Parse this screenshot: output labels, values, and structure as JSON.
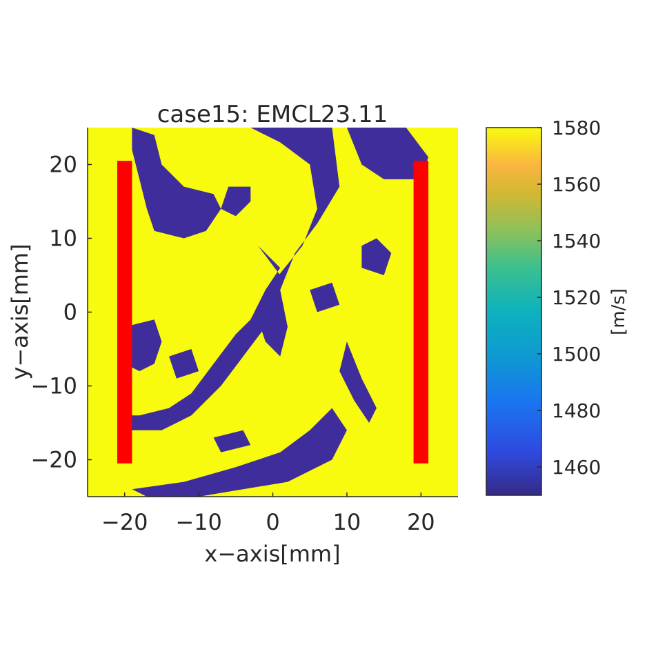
{
  "chart_data": {
    "type": "heatmap",
    "title": "case15: EMCL23.11",
    "xlabel": "x−axis[mm]",
    "ylabel": "y−axis[mm]",
    "xlim": [
      -25,
      25
    ],
    "ylim": [
      -25,
      25
    ],
    "xticks": [
      -20,
      -10,
      0,
      10,
      20
    ],
    "xtick_labels": [
      "−20",
      "−10",
      "0",
      "10",
      "20"
    ],
    "yticks": [
      20,
      10,
      0,
      -10,
      -20
    ],
    "ytick_labels": [
      "20",
      "10",
      "0",
      "−10",
      "−20"
    ],
    "colorbar": {
      "label": "[m/s]",
      "range": [
        1450,
        1580
      ],
      "ticks": [
        1580,
        1560,
        1540,
        1520,
        1500,
        1480,
        1460
      ],
      "tick_labels": [
        "1580",
        "1560",
        "1540",
        "1520",
        "1500",
        "1480",
        "1460"
      ],
      "colormap": "parula"
    },
    "field_values": {
      "background_speed": 1580,
      "region_speed": 1450,
      "background_color": "#f9fb0e",
      "region_color": "#3e2d9b"
    },
    "regions": [
      {
        "name": "top-center",
        "polygon": [
          [
            -3,
            25
          ],
          [
            8,
            25
          ],
          [
            9,
            17
          ],
          [
            6,
            12
          ],
          [
            3,
            8
          ],
          [
            1,
            3
          ],
          [
            2,
            -2
          ],
          [
            1,
            -6
          ],
          [
            -1,
            -4
          ],
          [
            -2,
            -1
          ],
          [
            0,
            4
          ],
          [
            4,
            9
          ],
          [
            6,
            14
          ],
          [
            5,
            20
          ],
          [
            1,
            23
          ]
        ]
      },
      {
        "name": "upper-left",
        "polygon": [
          [
            -19,
            25
          ],
          [
            -16,
            24
          ],
          [
            -15,
            20
          ],
          [
            -12,
            17
          ],
          [
            -8,
            16
          ],
          [
            -7,
            14
          ],
          [
            -9,
            11
          ],
          [
            -12,
            10
          ],
          [
            -16,
            11
          ],
          [
            -17,
            14
          ],
          [
            -18,
            18
          ],
          [
            -19,
            22
          ]
        ]
      },
      {
        "name": "upper-middle",
        "polygon": [
          [
            -6,
            17
          ],
          [
            -3,
            17
          ],
          [
            -3,
            15
          ],
          [
            -5,
            13
          ],
          [
            -7,
            14
          ]
        ]
      },
      {
        "name": "center-ribbon",
        "polygon": [
          [
            -2,
            9
          ],
          [
            1,
            6
          ],
          [
            -1,
            3
          ],
          [
            -3,
            -1
          ],
          [
            -5,
            -3
          ],
          [
            -8,
            -7
          ],
          [
            -11,
            -11
          ],
          [
            -14,
            -13
          ],
          [
            -18,
            -14
          ],
          [
            -20,
            -14
          ],
          [
            -20,
            -16
          ],
          [
            -15,
            -16
          ],
          [
            -11,
            -14
          ],
          [
            -7,
            -10
          ],
          [
            -4,
            -6
          ],
          [
            -1,
            -2
          ],
          [
            0,
            2
          ],
          [
            1,
            5
          ]
        ]
      },
      {
        "name": "left-lobe",
        "polygon": [
          [
            -20,
            -2
          ],
          [
            -16,
            -1
          ],
          [
            -15,
            -4
          ],
          [
            -16,
            -7
          ],
          [
            -18,
            -8
          ],
          [
            -20,
            -7
          ]
        ]
      },
      {
        "name": "lower-band",
        "polygon": [
          [
            -19,
            -24
          ],
          [
            -12,
            -23
          ],
          [
            -5,
            -21
          ],
          [
            1,
            -19
          ],
          [
            5,
            -16
          ],
          [
            8,
            -13
          ],
          [
            10,
            -16
          ],
          [
            8,
            -20
          ],
          [
            2,
            -23
          ],
          [
            -4,
            -24
          ],
          [
            -10,
            -25
          ],
          [
            -17,
            -25
          ]
        ]
      },
      {
        "name": "right-upper",
        "polygon": [
          [
            10,
            25
          ],
          [
            18,
            25
          ],
          [
            21,
            21
          ],
          [
            20,
            18
          ],
          [
            15,
            18
          ],
          [
            12,
            20
          ]
        ]
      },
      {
        "name": "right-lower",
        "polygon": [
          [
            10,
            -4
          ],
          [
            12,
            -9
          ],
          [
            14,
            -13
          ],
          [
            13,
            -15
          ],
          [
            11,
            -12
          ],
          [
            9,
            -8
          ]
        ]
      },
      {
        "name": "mid-left-blob",
        "polygon": [
          [
            -14,
            -6
          ],
          [
            -11,
            -5
          ],
          [
            -10,
            -8
          ],
          [
            -13,
            -9
          ]
        ]
      },
      {
        "name": "upper-right-blob",
        "polygon": [
          [
            14,
            10
          ],
          [
            16,
            8
          ],
          [
            15,
            5
          ],
          [
            12,
            6
          ],
          [
            12,
            9
          ]
        ]
      },
      {
        "name": "center-right-blob",
        "polygon": [
          [
            5,
            3
          ],
          [
            8,
            4
          ],
          [
            9,
            1
          ],
          [
            6,
            0
          ]
        ]
      },
      {
        "name": "mid-lower-blob",
        "polygon": [
          [
            -8,
            -17
          ],
          [
            -4,
            -16
          ],
          [
            -3,
            -18
          ],
          [
            -7,
            -19
          ]
        ]
      }
    ],
    "overlays": [
      {
        "name": "left-transducer",
        "color": "#ff0000",
        "x": [
          -21,
          -19
        ],
        "y": [
          -20.5,
          20.5
        ]
      },
      {
        "name": "right-transducer",
        "color": "#ff0000",
        "x": [
          19,
          21
        ],
        "y": [
          -20.5,
          20.5
        ]
      }
    ]
  }
}
